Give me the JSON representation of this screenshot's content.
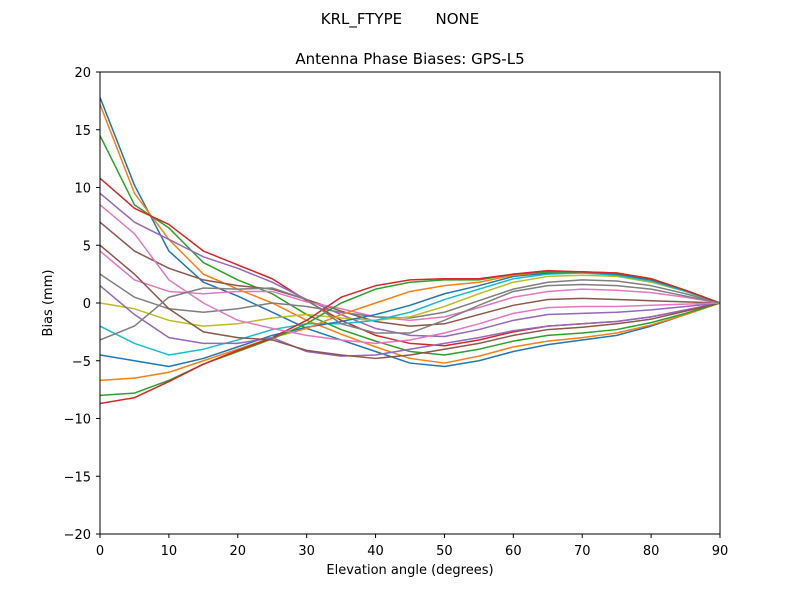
{
  "chart_data": {
    "type": "line",
    "suptitle": "KRL_FTYPE       NONE",
    "title": "Antenna Phase Biases: GPS-L5",
    "xlabel": "Elevation angle (degrees)",
    "ylabel": "Bias (mm)",
    "xlim": [
      0,
      90
    ],
    "ylim": [
      -20,
      20
    ],
    "xticks": [
      "0",
      "10",
      "20",
      "30",
      "40",
      "50",
      "60",
      "70",
      "80",
      "90"
    ],
    "yticks": [
      "−20",
      "−15",
      "−10",
      "−5",
      "0",
      "5",
      "10",
      "15",
      "20"
    ],
    "grid": false,
    "colors": [
      "#1f77b4",
      "#ff7f0e",
      "#2ca02c",
      "#d62728",
      "#9467bd",
      "#8c564b",
      "#e377c2",
      "#7f7f7f",
      "#bcbd22",
      "#17becf"
    ],
    "x": [
      0,
      5,
      10,
      15,
      20,
      25,
      30,
      35,
      40,
      45,
      50,
      55,
      60,
      65,
      70,
      75,
      80,
      85,
      90
    ],
    "series": [
      {
        "values": [
          17.8,
          10.2,
          4.5,
          1.8,
          0.6,
          -0.8,
          -2.2,
          -3.2,
          -4.2,
          -5.2,
          -5.5,
          -5,
          -4.2,
          -3.6,
          -3.2,
          -2.8,
          -2,
          -1,
          0
        ]
      },
      {
        "values": [
          17.2,
          9.5,
          5.5,
          2.5,
          1.2,
          0,
          -1.5,
          -2.7,
          -3.8,
          -4.8,
          -5.2,
          -4.6,
          -3.8,
          -3.3,
          -3,
          -2.6,
          -1.9,
          -1,
          0
        ]
      },
      {
        "values": [
          14.5,
          8.5,
          6.5,
          3.5,
          2,
          0.8,
          -1,
          -2.3,
          -3.3,
          -4.2,
          -4.5,
          -4,
          -3.3,
          -2.8,
          -2.6,
          -2.3,
          -1.7,
          -0.9,
          0
        ]
      },
      {
        "values": [
          10.8,
          8.2,
          6.8,
          4.5,
          3.3,
          2.1,
          0.2,
          -1.5,
          -2.8,
          -3.5,
          -3.7,
          -3.2,
          -2.5,
          -2,
          -1.8,
          -1.6,
          -1.2,
          -0.6,
          0
        ]
      },
      {
        "values": [
          9.5,
          7,
          5.5,
          4,
          3,
          1.8,
          0.3,
          -1,
          -2.2,
          -2.8,
          -2.9,
          -2.3,
          -1.5,
          -1,
          -0.9,
          -0.8,
          -0.6,
          -0.3,
          0
        ]
      },
      {
        "values": [
          7,
          4.5,
          3,
          2,
          1.5,
          1.2,
          0.3,
          -0.7,
          -1.6,
          -2,
          -1.8,
          -1,
          -0.2,
          0.3,
          0.4,
          0.3,
          0.2,
          0.1,
          0
        ]
      },
      {
        "values": [
          4.5,
          2,
          1,
          0.8,
          1,
          1,
          0.1,
          -0.5,
          -1.2,
          -1.5,
          -1.2,
          -0.4,
          0.5,
          1,
          1.2,
          1.1,
          0.9,
          0.5,
          0
        ]
      },
      {
        "values": [
          2.5,
          0.5,
          -0.5,
          -0.8,
          -0.5,
          0,
          -0.3,
          -0.8,
          -1.2,
          -1.3,
          -0.8,
          0.2,
          1.2,
          1.8,
          2,
          1.9,
          1.5,
          0.8,
          0
        ]
      },
      {
        "values": [
          0,
          -0.5,
          -1.5,
          -2,
          -1.8,
          -1.3,
          -1,
          -1.3,
          -1.5,
          -1.2,
          -0.3,
          0.8,
          1.8,
          2.3,
          2.4,
          2.3,
          1.8,
          1,
          0
        ]
      },
      {
        "values": [
          -2,
          -3.5,
          -4.5,
          -4,
          -3.2,
          -2.3,
          -1.8,
          -1.8,
          -1.5,
          -0.8,
          0.3,
          1.2,
          2.1,
          2.5,
          2.6,
          2.4,
          1.9,
          1,
          0
        ]
      },
      {
        "values": [
          -4.5,
          -5,
          -5.5,
          -4.8,
          -3.8,
          -2.8,
          -2.1,
          -1.6,
          -1,
          -0.2,
          0.8,
          1.5,
          2.3,
          2.6,
          2.7,
          2.5,
          2,
          1.1,
          0
        ]
      },
      {
        "values": [
          -6.7,
          -6.5,
          -6,
          -5,
          -4,
          -3,
          -2.2,
          -1,
          0,
          1,
          1.5,
          1.8,
          2.4,
          2.7,
          2.7,
          2.6,
          2.1,
          1.1,
          0
        ]
      },
      {
        "values": [
          -8,
          -7.8,
          -6.7,
          -5.3,
          -4.2,
          -3.1,
          -1.8,
          0,
          1.2,
          1.8,
          2,
          2,
          2.5,
          2.7,
          2.7,
          2.6,
          2.1,
          1.1,
          0
        ]
      },
      {
        "values": [
          -8.7,
          -8.2,
          -6.8,
          -5.3,
          -4.1,
          -3,
          -1.5,
          0.5,
          1.5,
          2,
          2.1,
          2.1,
          2.5,
          2.8,
          2.7,
          2.6,
          2.1,
          1.1,
          0
        ]
      },
      {
        "values": [
          1.5,
          -1,
          -3,
          -3.5,
          -3.5,
          -3,
          -4.2,
          -4.6,
          -4.5,
          -4,
          -3.5,
          -3,
          -2.4,
          -2,
          -1.8,
          -1.6,
          -1.2,
          -0.6,
          0
        ]
      },
      {
        "values": [
          5,
          2.5,
          -0.5,
          -2.5,
          -3,
          -3.2,
          -4.1,
          -4.5,
          -4.8,
          -4.5,
          -4,
          -3.5,
          -2.8,
          -2.3,
          -2.1,
          -1.8,
          -1.4,
          -0.7,
          0
        ]
      },
      {
        "values": [
          8.5,
          6,
          2,
          0,
          -1.5,
          -2.2,
          -2.8,
          -3.2,
          -3.5,
          -3.2,
          -2.6,
          -1.8,
          -0.9,
          -0.4,
          -0.3,
          -0.3,
          -0.2,
          -0.1,
          0
        ]
      },
      {
        "values": [
          -3.2,
          -2,
          0.5,
          1.3,
          1.2,
          1.3,
          0.3,
          -1.8,
          -2.6,
          -2.6,
          -1.5,
          -0.2,
          1,
          1.5,
          1.6,
          1.5,
          1.2,
          0.6,
          0
        ]
      }
    ]
  }
}
